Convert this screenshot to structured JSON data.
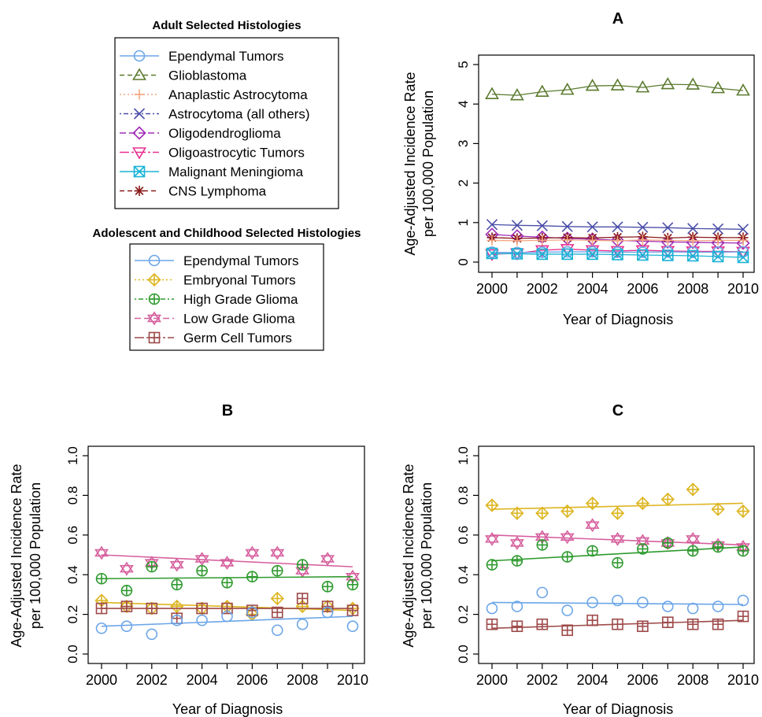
{
  "legends": {
    "adult": {
      "title": "Adult Selected Histologies",
      "entries": [
        {
          "name": "Ependymal Tumors",
          "color": "#6CA6E8",
          "marker": "circle",
          "dash": ""
        },
        {
          "name": "Glioblastoma",
          "color": "#5B7A2E",
          "marker": "triangle-up",
          "dash": "6,4"
        },
        {
          "name": "Anaplastic Astrocytoma",
          "color": "#F4A582",
          "marker": "plus",
          "dash": "2,3"
        },
        {
          "name": "Astrocytoma (all others)",
          "color": "#4B4FA8",
          "marker": "x",
          "dash": "2,3,6,3"
        },
        {
          "name": "Oligodendroglioma",
          "color": "#9E2BB5",
          "marker": "diamond",
          "dash": "8,4"
        },
        {
          "name": "Oligoastrocytic Tumors",
          "color": "#E8318F",
          "marker": "triangle-down",
          "dash": "12,3,3,3"
        },
        {
          "name": "Malignant Meningioma",
          "color": "#19B3D6",
          "marker": "box-x",
          "dash": ""
        },
        {
          "name": "CNS Lymphoma",
          "color": "#8B1A1A",
          "marker": "star",
          "dash": "6,4"
        }
      ]
    },
    "child": {
      "title": "Adolescent and Childhood Selected Histologies",
      "entries": [
        {
          "name": "Ependymal Tumors",
          "color": "#6CA6E8",
          "marker": "circle",
          "dash": ""
        },
        {
          "name": "Embryonal Tumors",
          "color": "#DDB520",
          "marker": "diamond-plus",
          "dash": "2,3"
        },
        {
          "name": "High Grade Glioma",
          "color": "#2E9A2E",
          "marker": "circle-plus",
          "dash": "2,3,6,3"
        },
        {
          "name": "Low Grade Glioma",
          "color": "#D6609E",
          "marker": "star-david",
          "dash": "8,4"
        },
        {
          "name": "Germ Cell Tumors",
          "color": "#9E4A4A",
          "marker": "box-plus",
          "dash": "12,3,3,3"
        }
      ]
    }
  },
  "chart_data": [
    {
      "id": "A",
      "type": "line",
      "title": "A",
      "xlabel": "Year of Diagnosis",
      "ylabel": [
        "Age-Adjusted Incidence Rate",
        "per 100,000 Population"
      ],
      "x": [
        2000,
        2001,
        2002,
        2003,
        2004,
        2005,
        2006,
        2007,
        2008,
        2009,
        2010
      ],
      "xticks": [
        "2000",
        "2002",
        "2004",
        "2006",
        "2008",
        "2010"
      ],
      "ylim": [
        0,
        5
      ],
      "yticks": [
        "0",
        "1",
        "2",
        "3",
        "4",
        "5"
      ],
      "series": [
        {
          "name": "Glioblastoma",
          "marker": "triangle-up",
          "color": "#5B7A2E",
          "values": [
            4.25,
            4.22,
            4.31,
            4.36,
            4.46,
            4.47,
            4.42,
            4.5,
            4.49,
            4.4,
            4.34
          ]
        },
        {
          "name": "Astrocytoma (all others)",
          "marker": "x",
          "color": "#4B4FA8",
          "values": [
            0.95,
            0.93,
            0.92,
            0.9,
            0.89,
            0.89,
            0.88,
            0.87,
            0.85,
            0.84,
            0.83
          ]
        },
        {
          "name": "Oligodendroglioma",
          "marker": "diamond",
          "color": "#9E2BB5",
          "values": [
            0.7,
            0.66,
            0.63,
            0.6,
            0.58,
            0.55,
            0.53,
            0.51,
            0.5,
            0.49,
            0.48
          ]
        },
        {
          "name": "CNS Lymphoma",
          "marker": "star",
          "color": "#8B1A1A",
          "values": [
            0.62,
            0.6,
            0.61,
            0.62,
            0.61,
            0.63,
            0.64,
            0.61,
            0.63,
            0.62,
            0.62
          ]
        },
        {
          "name": "Anaplastic Astrocytoma",
          "marker": "plus",
          "color": "#F4A582",
          "values": [
            0.55,
            0.54,
            0.55,
            0.56,
            0.55,
            0.54,
            0.56,
            0.55,
            0.54,
            0.55,
            0.55
          ]
        },
        {
          "name": "Oligoastrocytic Tumors",
          "marker": "triangle-down",
          "color": "#E8318F",
          "values": [
            0.2,
            0.22,
            0.3,
            0.33,
            0.3,
            0.28,
            0.3,
            0.28,
            0.27,
            0.27,
            0.26
          ]
        },
        {
          "name": "Ependymal Tumors",
          "marker": "circle",
          "color": "#6CA6E8",
          "values": [
            0.25,
            0.24,
            0.25,
            0.26,
            0.26,
            0.25,
            0.25,
            0.26,
            0.25,
            0.25,
            0.26
          ]
        },
        {
          "name": "Malignant Meningioma",
          "marker": "box-x",
          "color": "#19B3D6",
          "values": [
            0.22,
            0.21,
            0.2,
            0.2,
            0.2,
            0.19,
            0.18,
            0.17,
            0.16,
            0.14,
            0.12
          ]
        }
      ]
    },
    {
      "id": "B",
      "type": "scatter",
      "title": "B",
      "xlabel": "Year of Diagnosis",
      "ylabel": [
        "Age-Adjusted Incidence Rate",
        "per 100,000 Population"
      ],
      "x": [
        2000,
        2001,
        2002,
        2003,
        2004,
        2005,
        2006,
        2007,
        2008,
        2009,
        2010
      ],
      "xticks": [
        "2000",
        "2002",
        "2004",
        "2006",
        "2008",
        "2010"
      ],
      "ylim": [
        0,
        1
      ],
      "yticks": [
        "0.0",
        "0.2",
        "0.4",
        "0.6",
        "0.8",
        "1.0"
      ],
      "series": [
        {
          "name": "Low Grade Glioma",
          "marker": "star-david",
          "color": "#D6609E",
          "values": [
            0.51,
            0.43,
            0.46,
            0.45,
            0.48,
            0.46,
            0.51,
            0.51,
            0.42,
            0.48,
            0.39
          ],
          "trend": [
            0.5,
            0.44
          ]
        },
        {
          "name": "High Grade Glioma",
          "marker": "circle-plus",
          "color": "#2E9A2E",
          "values": [
            0.38,
            0.32,
            0.44,
            0.35,
            0.42,
            0.36,
            0.39,
            0.42,
            0.45,
            0.34,
            0.35
          ],
          "trend": [
            0.38,
            0.39
          ]
        },
        {
          "name": "Embryonal Tumors",
          "marker": "diamond-plus",
          "color": "#DDB520",
          "values": [
            0.27,
            0.24,
            0.23,
            0.24,
            0.23,
            0.24,
            0.2,
            0.28,
            0.24,
            0.24,
            0.23
          ],
          "trend": [
            0.26,
            0.22
          ]
        },
        {
          "name": "Germ Cell Tumors",
          "marker": "box-plus",
          "color": "#9E4A4A",
          "values": [
            0.23,
            0.24,
            0.23,
            0.18,
            0.23,
            0.23,
            0.22,
            0.21,
            0.28,
            0.24,
            0.22
          ],
          "trend": [
            0.23,
            0.23
          ]
        },
        {
          "name": "Ependymal Tumors",
          "marker": "circle",
          "color": "#6CA6E8",
          "values": [
            0.13,
            0.14,
            0.1,
            0.17,
            0.17,
            0.19,
            0.21,
            0.12,
            0.15,
            0.21,
            0.14
          ],
          "trend": [
            0.14,
            0.19
          ]
        }
      ]
    },
    {
      "id": "C",
      "type": "scatter",
      "title": "C",
      "xlabel": "Year of Diagnosis",
      "ylabel": [
        "Age-Adjusted Incidence Rate",
        "per 100,000 Population"
      ],
      "x": [
        2000,
        2001,
        2002,
        2003,
        2004,
        2005,
        2006,
        2007,
        2008,
        2009,
        2010
      ],
      "xticks": [
        "2000",
        "2002",
        "2004",
        "2006",
        "2008",
        "2010"
      ],
      "ylim": [
        0,
        1
      ],
      "yticks": [
        "0.0",
        "0.2",
        "0.4",
        "0.6",
        "0.8",
        "1.0"
      ],
      "series": [
        {
          "name": "Embryonal Tumors",
          "marker": "diamond-plus",
          "color": "#DDB520",
          "values": [
            0.75,
            0.71,
            0.71,
            0.72,
            0.76,
            0.71,
            0.76,
            0.78,
            0.83,
            0.73,
            0.72
          ],
          "trend": [
            0.73,
            0.76
          ]
        },
        {
          "name": "Low Grade Glioma",
          "marker": "star-david",
          "color": "#D6609E",
          "values": [
            0.58,
            0.56,
            0.59,
            0.59,
            0.65,
            0.58,
            0.57,
            0.56,
            0.58,
            0.55,
            0.54
          ],
          "trend": [
            0.6,
            0.55
          ]
        },
        {
          "name": "High Grade Glioma",
          "marker": "circle-plus",
          "color": "#2E9A2E",
          "values": [
            0.45,
            0.47,
            0.55,
            0.49,
            0.52,
            0.46,
            0.53,
            0.56,
            0.52,
            0.54,
            0.52
          ],
          "trend": [
            0.47,
            0.54
          ]
        },
        {
          "name": "Ependymal Tumors",
          "marker": "circle",
          "color": "#6CA6E8",
          "values": [
            0.23,
            0.24,
            0.31,
            0.22,
            0.26,
            0.27,
            0.26,
            0.24,
            0.23,
            0.24,
            0.27
          ],
          "trend": [
            0.26,
            0.25
          ]
        },
        {
          "name": "Germ Cell Tumors",
          "marker": "box-plus",
          "color": "#9E4A4A",
          "values": [
            0.15,
            0.14,
            0.15,
            0.12,
            0.17,
            0.15,
            0.14,
            0.16,
            0.15,
            0.15,
            0.19
          ],
          "trend": [
            0.13,
            0.17
          ]
        }
      ]
    }
  ]
}
